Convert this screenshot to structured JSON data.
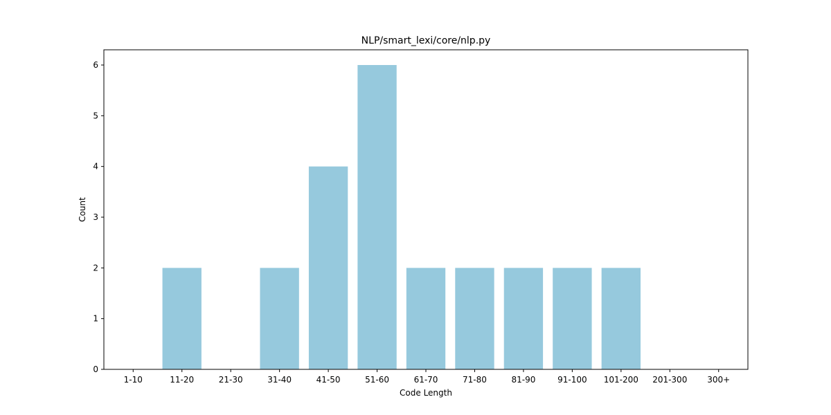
{
  "chart_data": {
    "type": "bar",
    "title": "NLP/smart_lexi/core/nlp.py",
    "xlabel": "Code Length",
    "ylabel": "Count",
    "categories": [
      "1-10",
      "11-20",
      "21-30",
      "31-40",
      "41-50",
      "51-60",
      "61-70",
      "71-80",
      "81-90",
      "91-100",
      "101-200",
      "201-300",
      "300+"
    ],
    "values": [
      0,
      2,
      0,
      2,
      4,
      6,
      2,
      2,
      2,
      2,
      2,
      0,
      0
    ],
    "yticks": [
      0,
      1,
      2,
      3,
      4,
      5,
      6
    ],
    "ylim": [
      0,
      6.3
    ],
    "bar_color": "#96c9dd",
    "grid": false,
    "legend": "none"
  }
}
